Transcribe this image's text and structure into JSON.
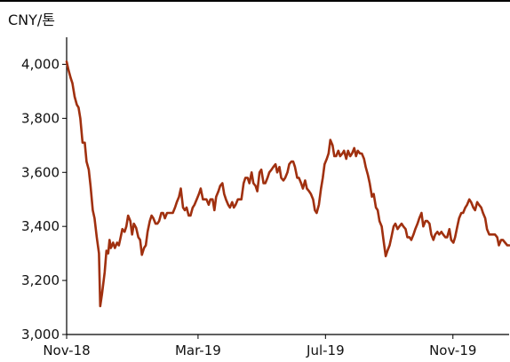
{
  "chart_data": {
    "type": "line",
    "unit_label": "CNY/톤",
    "x_tick_labels": [
      "Nov-18",
      "Mar-19",
      "Jul-19",
      "Nov-19"
    ],
    "y_tick_labels": [
      "3,000",
      "3,200",
      "3,400",
      "3,600",
      "3,800",
      "4,000"
    ],
    "y_ticks": [
      3000,
      3200,
      3400,
      3600,
      3800,
      4000
    ],
    "ylim": [
      3000,
      4100
    ],
    "xlim": [
      0,
      100
    ],
    "x_tick_positions": [
      0,
      29.7,
      58.5,
      87.3
    ],
    "grid": false,
    "line_color": "#A0300F",
    "series": [
      {
        "values": [
          [
            0,
            4010
          ],
          [
            0.4,
            3980
          ],
          [
            0.9,
            3950
          ],
          [
            1.3,
            3930
          ],
          [
            1.8,
            3880
          ],
          [
            2.3,
            3850
          ],
          [
            2.7,
            3840
          ],
          [
            3.1,
            3800
          ],
          [
            3.6,
            3710
          ],
          [
            4.1,
            3710
          ],
          [
            4.5,
            3640
          ],
          [
            5.0,
            3610
          ],
          [
            5.4,
            3550
          ],
          [
            5.9,
            3460
          ],
          [
            6.3,
            3430
          ],
          [
            6.8,
            3360
          ],
          [
            7.3,
            3300
          ],
          [
            7.6,
            3105
          ],
          [
            8.0,
            3150
          ],
          [
            8.6,
            3230
          ],
          [
            9.0,
            3310
          ],
          [
            9.4,
            3300
          ],
          [
            9.7,
            3350
          ],
          [
            10.0,
            3320
          ],
          [
            10.5,
            3340
          ],
          [
            10.9,
            3320
          ],
          [
            11.4,
            3340
          ],
          [
            11.8,
            3330
          ],
          [
            12.2,
            3360
          ],
          [
            12.6,
            3390
          ],
          [
            13.1,
            3380
          ],
          [
            13.5,
            3400
          ],
          [
            13.9,
            3440
          ],
          [
            14.4,
            3420
          ],
          [
            14.8,
            3370
          ],
          [
            15.2,
            3410
          ],
          [
            15.7,
            3395
          ],
          [
            16.2,
            3360
          ],
          [
            16.6,
            3350
          ],
          [
            17.0,
            3295
          ],
          [
            17.5,
            3320
          ],
          [
            17.9,
            3330
          ],
          [
            18.3,
            3380
          ],
          [
            18.8,
            3420
          ],
          [
            19.2,
            3440
          ],
          [
            19.6,
            3430
          ],
          [
            20.1,
            3410
          ],
          [
            20.5,
            3410
          ],
          [
            20.9,
            3420
          ],
          [
            21.4,
            3450
          ],
          [
            21.8,
            3450
          ],
          [
            22.2,
            3430
          ],
          [
            22.7,
            3450
          ],
          [
            23.1,
            3450
          ],
          [
            23.6,
            3450
          ],
          [
            24.0,
            3450
          ],
          [
            24.5,
            3470
          ],
          [
            24.9,
            3490
          ],
          [
            25.4,
            3510
          ],
          [
            25.8,
            3540
          ],
          [
            26.3,
            3470
          ],
          [
            26.7,
            3460
          ],
          [
            27.1,
            3470
          ],
          [
            27.6,
            3440
          ],
          [
            28.0,
            3440
          ],
          [
            28.5,
            3470
          ],
          [
            28.9,
            3480
          ],
          [
            29.4,
            3500
          ],
          [
            29.9,
            3520
          ],
          [
            30.3,
            3540
          ],
          [
            30.8,
            3500
          ],
          [
            31.2,
            3500
          ],
          [
            31.6,
            3500
          ],
          [
            32.1,
            3480
          ],
          [
            32.5,
            3500
          ],
          [
            33.0,
            3500
          ],
          [
            33.4,
            3460
          ],
          [
            33.8,
            3510
          ],
          [
            34.3,
            3530
          ],
          [
            34.7,
            3550
          ],
          [
            35.2,
            3560
          ],
          [
            35.6,
            3520
          ],
          [
            36.0,
            3500
          ],
          [
            36.5,
            3480
          ],
          [
            36.9,
            3470
          ],
          [
            37.4,
            3490
          ],
          [
            37.8,
            3470
          ],
          [
            38.2,
            3480
          ],
          [
            38.7,
            3500
          ],
          [
            39.1,
            3500
          ],
          [
            39.5,
            3500
          ],
          [
            40.0,
            3560
          ],
          [
            40.4,
            3580
          ],
          [
            40.9,
            3580
          ],
          [
            41.3,
            3560
          ],
          [
            41.8,
            3600
          ],
          [
            42.2,
            3560
          ],
          [
            42.7,
            3550
          ],
          [
            43.1,
            3530
          ],
          [
            43.6,
            3600
          ],
          [
            44.0,
            3610
          ],
          [
            44.5,
            3560
          ],
          [
            44.9,
            3560
          ],
          [
            45.4,
            3580
          ],
          [
            45.8,
            3600
          ],
          [
            46.3,
            3610
          ],
          [
            46.7,
            3620
          ],
          [
            47.2,
            3630
          ],
          [
            47.6,
            3600
          ],
          [
            48.1,
            3620
          ],
          [
            48.5,
            3580
          ],
          [
            49.0,
            3570
          ],
          [
            49.4,
            3580
          ],
          [
            49.9,
            3600
          ],
          [
            50.3,
            3630
          ],
          [
            50.8,
            3640
          ],
          [
            51.2,
            3640
          ],
          [
            51.6,
            3620
          ],
          [
            52.1,
            3580
          ],
          [
            52.5,
            3580
          ],
          [
            53.0,
            3560
          ],
          [
            53.4,
            3540
          ],
          [
            53.9,
            3570
          ],
          [
            54.3,
            3540
          ],
          [
            54.8,
            3530
          ],
          [
            55.2,
            3520
          ],
          [
            55.7,
            3500
          ],
          [
            56.1,
            3460
          ],
          [
            56.5,
            3450
          ],
          [
            57.0,
            3480
          ],
          [
            57.5,
            3540
          ],
          [
            57.9,
            3580
          ],
          [
            58.3,
            3630
          ],
          [
            58.8,
            3650
          ],
          [
            59.2,
            3670
          ],
          [
            59.6,
            3720
          ],
          [
            60.1,
            3700
          ],
          [
            60.5,
            3660
          ],
          [
            60.9,
            3660
          ],
          [
            61.4,
            3680
          ],
          [
            61.8,
            3660
          ],
          [
            62.3,
            3670
          ],
          [
            62.7,
            3680
          ],
          [
            63.2,
            3650
          ],
          [
            63.6,
            3680
          ],
          [
            64.1,
            3660
          ],
          [
            64.5,
            3670
          ],
          [
            65.0,
            3690
          ],
          [
            65.4,
            3660
          ],
          [
            65.8,
            3680
          ],
          [
            66.3,
            3670
          ],
          [
            66.7,
            3670
          ],
          [
            67.2,
            3650
          ],
          [
            67.6,
            3620
          ],
          [
            68.1,
            3590
          ],
          [
            68.5,
            3560
          ],
          [
            69.0,
            3510
          ],
          [
            69.4,
            3520
          ],
          [
            69.9,
            3470
          ],
          [
            70.3,
            3460
          ],
          [
            70.7,
            3420
          ],
          [
            71.2,
            3400
          ],
          [
            71.6,
            3350
          ],
          [
            72.1,
            3290
          ],
          [
            72.5,
            3310
          ],
          [
            73.0,
            3330
          ],
          [
            73.4,
            3360
          ],
          [
            73.9,
            3400
          ],
          [
            74.3,
            3410
          ],
          [
            74.8,
            3390
          ],
          [
            75.2,
            3400
          ],
          [
            75.7,
            3410
          ],
          [
            76.1,
            3400
          ],
          [
            76.6,
            3390
          ],
          [
            77.0,
            3360
          ],
          [
            77.5,
            3360
          ],
          [
            77.9,
            3350
          ],
          [
            78.4,
            3370
          ],
          [
            78.8,
            3390
          ],
          [
            79.3,
            3410
          ],
          [
            79.7,
            3430
          ],
          [
            80.2,
            3450
          ],
          [
            80.6,
            3400
          ],
          [
            81.1,
            3420
          ],
          [
            81.5,
            3420
          ],
          [
            82.0,
            3410
          ],
          [
            82.4,
            3370
          ],
          [
            82.9,
            3350
          ],
          [
            83.3,
            3370
          ],
          [
            83.8,
            3380
          ],
          [
            84.2,
            3370
          ],
          [
            84.7,
            3380
          ],
          [
            85.1,
            3370
          ],
          [
            85.6,
            3360
          ],
          [
            86.0,
            3360
          ],
          [
            86.5,
            3390
          ],
          [
            86.9,
            3350
          ],
          [
            87.4,
            3340
          ],
          [
            87.8,
            3360
          ],
          [
            88.3,
            3400
          ],
          [
            88.7,
            3430
          ],
          [
            89.2,
            3450
          ],
          [
            89.6,
            3450
          ],
          [
            90.1,
            3470
          ],
          [
            90.5,
            3480
          ],
          [
            91.0,
            3500
          ],
          [
            91.4,
            3490
          ],
          [
            91.9,
            3470
          ],
          [
            92.3,
            3460
          ],
          [
            92.8,
            3490
          ],
          [
            93.2,
            3480
          ],
          [
            93.7,
            3470
          ],
          [
            94.1,
            3450
          ],
          [
            94.6,
            3430
          ],
          [
            95.0,
            3390
          ],
          [
            95.5,
            3370
          ],
          [
            95.9,
            3370
          ],
          [
            96.4,
            3370
          ],
          [
            96.8,
            3370
          ],
          [
            97.3,
            3360
          ],
          [
            97.7,
            3330
          ],
          [
            98.2,
            3350
          ],
          [
            98.6,
            3350
          ],
          [
            99.1,
            3340
          ],
          [
            99.6,
            3330
          ],
          [
            100,
            3330
          ]
        ]
      }
    ]
  }
}
